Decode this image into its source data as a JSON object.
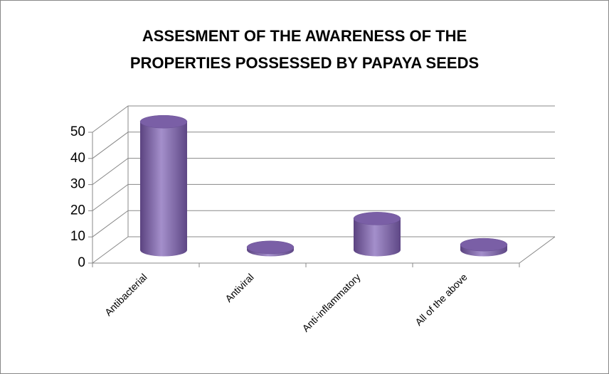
{
  "chart_data": {
    "type": "bar3d",
    "title": [
      "ASSESMENT OF THE AWARENESS OF THE",
      "PROPERTIES POSSESSED BY PAPAYA SEEDS"
    ],
    "categories": [
      "Antibacterial",
      "Antiviral",
      "Anti-inflammatory",
      "All of the above"
    ],
    "values": [
      49,
      1,
      12,
      2
    ],
    "color": "#8064a2",
    "ylim": [
      0,
      50
    ],
    "yticks": [
      0,
      10,
      20,
      30,
      40,
      50
    ],
    "grid": true
  }
}
